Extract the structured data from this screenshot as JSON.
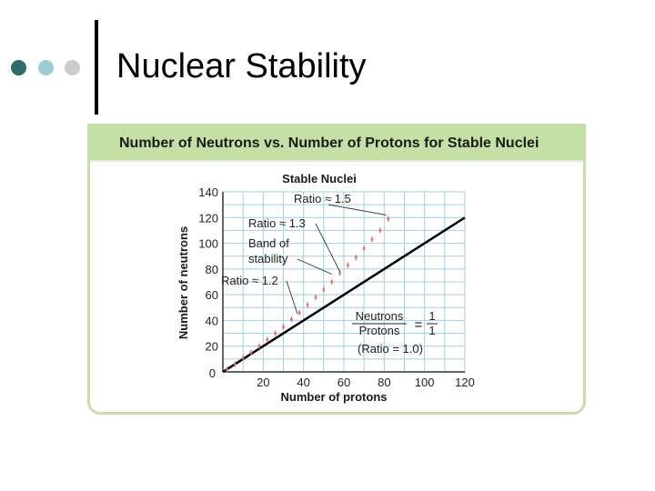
{
  "slide": {
    "title": "Nuclear Stability",
    "bullet_colors": [
      "#2e6b6b",
      "#9ccdd3",
      "#cccccc"
    ]
  },
  "figure": {
    "header": "Number of Neutrons vs. Number of Protons for Stable Nuclei",
    "header_bg": "#c5e0a5",
    "border_color": "#c5e0a5",
    "grid_color": "#9fd0e6",
    "point_color": "#e06c6c"
  },
  "chart_data": {
    "type": "scatter",
    "title": "Stable Nuclei",
    "xlabel": "Number of protons",
    "ylabel": "Number of neutrons",
    "xlim": [
      0,
      120
    ],
    "ylim": [
      0,
      140
    ],
    "xticks": [
      20,
      40,
      60,
      80,
      100,
      120
    ],
    "yticks": [
      20,
      40,
      60,
      80,
      100,
      120,
      140
    ],
    "origin_label": "0",
    "grid": true,
    "reference_line": {
      "x": [
        0,
        120
      ],
      "y": [
        0,
        120
      ]
    },
    "band_of_stability": {
      "x": [
        2,
        6,
        10,
        14,
        18,
        22,
        26,
        30,
        34,
        38,
        42,
        46,
        50,
        54,
        58,
        62,
        66,
        70,
        74,
        78,
        82
      ],
      "y": [
        2,
        6,
        11,
        15,
        20,
        25,
        30,
        35,
        41,
        46,
        52,
        58,
        64,
        70,
        77,
        83,
        89,
        96,
        103,
        110,
        119
      ]
    },
    "annotations": [
      {
        "text": "Ratio ≈ 1.5",
        "target": [
          81,
          122
        ]
      },
      {
        "text": "Ratio ≈ 1.3",
        "target": [
          58,
          78
        ]
      },
      {
        "text": "Band of",
        "target": [
          54,
          76
        ]
      },
      {
        "text": "stability",
        "target": null
      },
      {
        "text": "Ratio ≈ 1.2",
        "target": [
          37,
          45
        ]
      },
      {
        "text": "Neutrons",
        "target": null
      },
      {
        "text": "Protons",
        "target": null
      },
      {
        "text": "=",
        "target": null
      },
      {
        "text": "1",
        "target": null
      },
      {
        "text": "1",
        "target": null
      },
      {
        "text": "(Ratio = 1.0)",
        "target": null
      }
    ]
  }
}
